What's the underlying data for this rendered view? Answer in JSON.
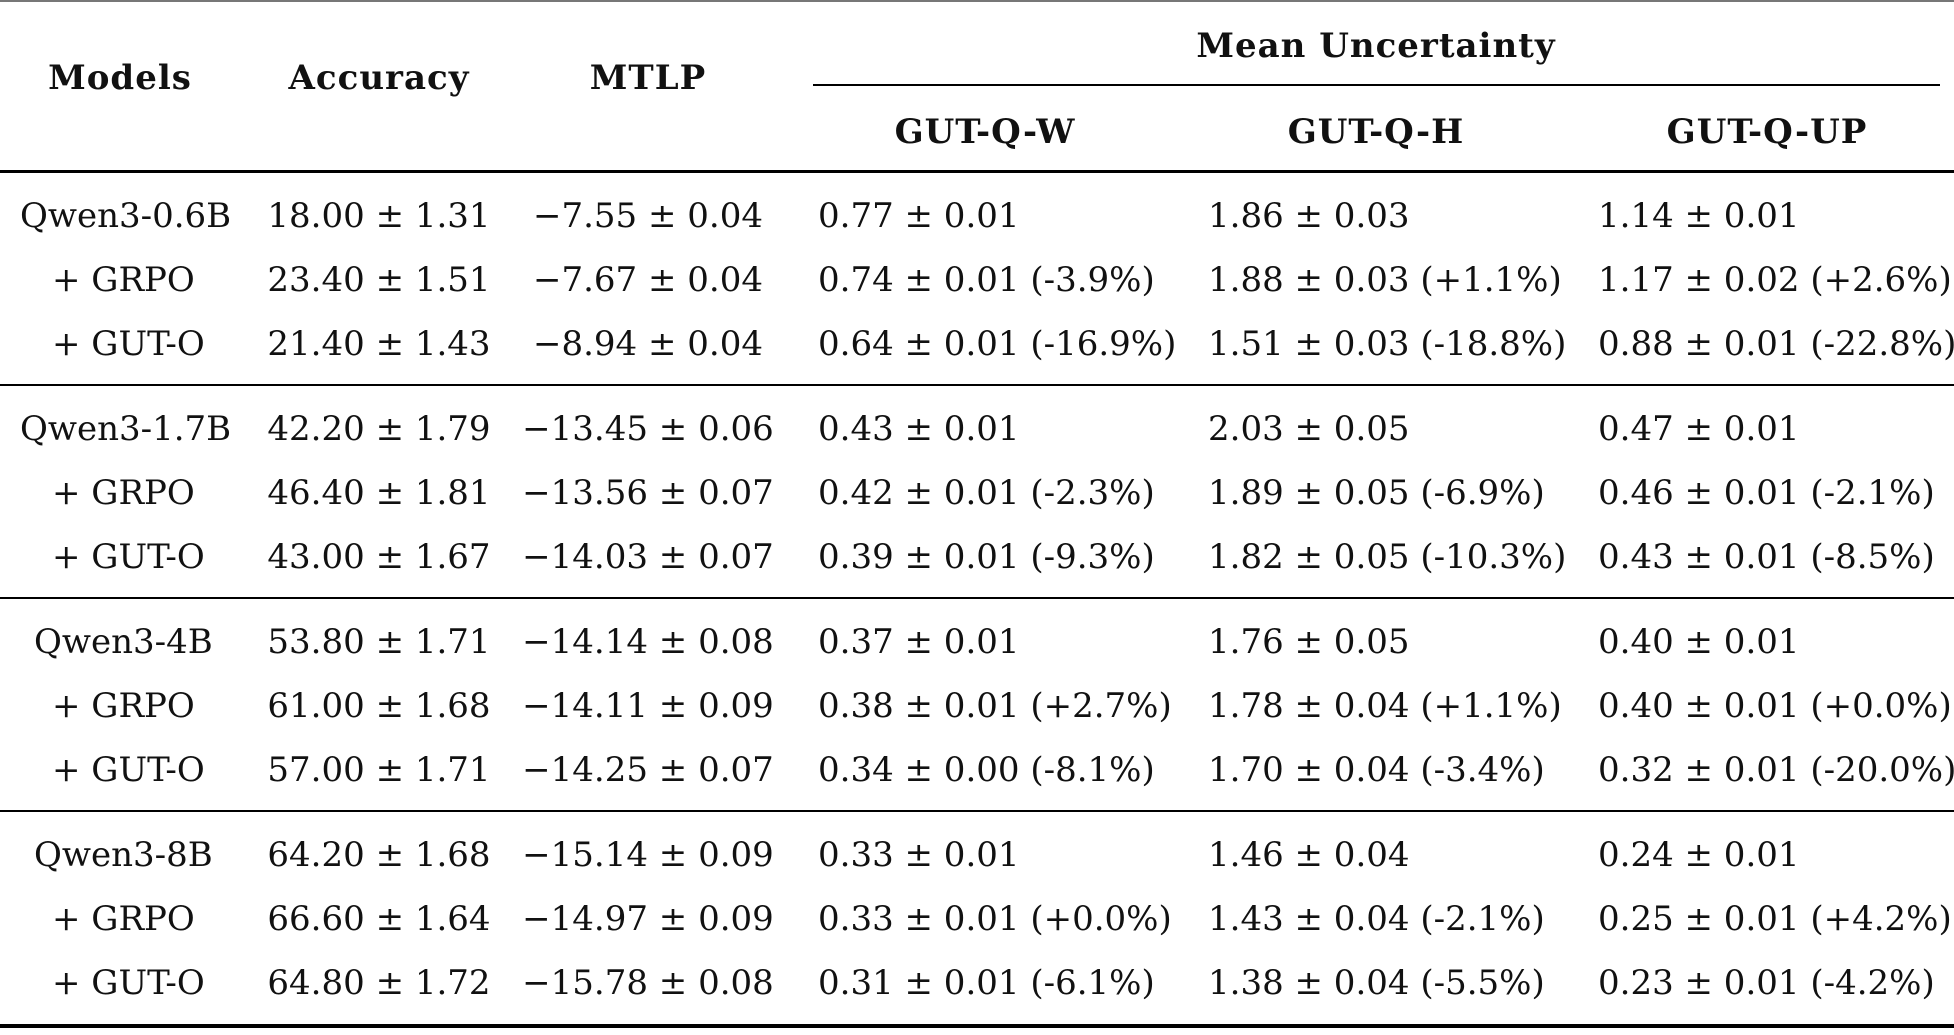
{
  "header": {
    "models": "Models",
    "accuracy": "Accuracy",
    "mtlp": "MTLP",
    "mean_uncertainty": "Mean Uncertainty",
    "gut_q_w": "GUT-Q-W",
    "gut_q_h": "GUT-Q-H",
    "gut_q_up": "GUT-Q-UP"
  },
  "groups": [
    {
      "rows": [
        {
          "model": "Qwen3-0.6B",
          "accuracy": "18.00 ± 1.31",
          "mtlp": "−7.55 ± 0.04",
          "w": "0.77 ± 0.01",
          "h": "1.86 ± 0.03",
          "up": "1.14 ± 0.01"
        },
        {
          "model": "+ GRPO",
          "accuracy": "23.40 ± 1.51",
          "mtlp": "−7.67 ± 0.04",
          "w": "0.74 ± 0.01 (-3.9%)",
          "h": "1.88 ± 0.03 (+1.1%)",
          "up": "1.17 ± 0.02 (+2.6%)"
        },
        {
          "model": "+ GUT-O",
          "accuracy": "21.40 ± 1.43",
          "mtlp": "−8.94 ± 0.04",
          "w": "0.64 ± 0.01 (-16.9%)",
          "h": "1.51 ± 0.03 (-18.8%)",
          "up": "0.88 ± 0.01 (-22.8%)"
        }
      ]
    },
    {
      "rows": [
        {
          "model": "Qwen3-1.7B",
          "accuracy": "42.20 ± 1.79",
          "mtlp": "−13.45 ± 0.06",
          "w": "0.43 ± 0.01",
          "h": "2.03 ± 0.05",
          "up": "0.47 ± 0.01"
        },
        {
          "model": "+ GRPO",
          "accuracy": "46.40 ± 1.81",
          "mtlp": "−13.56 ± 0.07",
          "w": "0.42 ± 0.01 (-2.3%)",
          "h": "1.89 ± 0.05 (-6.9%)",
          "up": "0.46 ± 0.01 (-2.1%)"
        },
        {
          "model": "+ GUT-O",
          "accuracy": "43.00 ± 1.67",
          "mtlp": "−14.03 ± 0.07",
          "w": "0.39 ± 0.01 (-9.3%)",
          "h": "1.82 ± 0.05 (-10.3%)",
          "up": "0.43 ± 0.01 (-8.5%)"
        }
      ]
    },
    {
      "rows": [
        {
          "model": "Qwen3-4B",
          "accuracy": "53.80 ± 1.71",
          "mtlp": "−14.14 ± 0.08",
          "w": "0.37 ± 0.01",
          "h": "1.76 ± 0.05",
          "up": "0.40 ± 0.01"
        },
        {
          "model": "+ GRPO",
          "accuracy": "61.00 ± 1.68",
          "mtlp": "−14.11 ± 0.09",
          "w": "0.38 ± 0.01 (+2.7%)",
          "h": "1.78 ± 0.04 (+1.1%)",
          "up": "0.40 ± 0.01 (+0.0%)"
        },
        {
          "model": "+ GUT-O",
          "accuracy": "57.00 ± 1.71",
          "mtlp": "−14.25 ± 0.07",
          "w": "0.34 ± 0.00 (-8.1%)",
          "h": "1.70 ± 0.04 (-3.4%)",
          "up": "0.32 ± 0.01 (-20.0%)"
        }
      ]
    },
    {
      "rows": [
        {
          "model": "Qwen3-8B",
          "accuracy": "64.20 ± 1.68",
          "mtlp": "−15.14 ± 0.09",
          "w": "0.33 ± 0.01",
          "h": "1.46 ± 0.04",
          "up": "0.24 ± 0.01"
        },
        {
          "model": "+ GRPO",
          "accuracy": "66.60 ± 1.64",
          "mtlp": "−14.97 ± 0.09",
          "w": "0.33 ± 0.01 (+0.0%)",
          "h": "1.43 ± 0.04 (-2.1%)",
          "up": "0.25 ± 0.01 (+4.2%)"
        },
        {
          "model": "+ GUT-O",
          "accuracy": "64.80 ± 1.72",
          "mtlp": "−15.78 ± 0.08",
          "w": "0.31 ± 0.01 (-6.1%)",
          "h": "1.38 ± 0.04 (-5.5%)",
          "up": "0.23 ± 0.01 (-4.2%)"
        }
      ]
    }
  ]
}
